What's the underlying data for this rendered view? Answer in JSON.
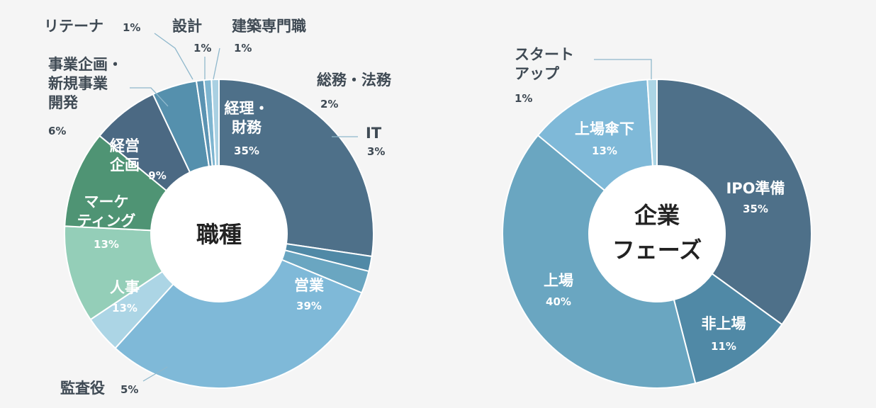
{
  "chart_data": [
    {
      "type": "donut",
      "title": "職種",
      "unit": "%",
      "slices": [
        {
          "label": "経理・財務",
          "lines": [
            "経理・",
            "財務"
          ],
          "value": 35,
          "value_label": "35%",
          "color": "#4e7089",
          "label_side": "inside"
        },
        {
          "label": "総務・法務",
          "lines": [
            "総務・法務"
          ],
          "value": 2,
          "value_label": "2%",
          "color": "#5089a6",
          "label_side": "outside"
        },
        {
          "label": "IT",
          "lines": [
            "IT"
          ],
          "value": 3,
          "value_label": "3%",
          "color": "#6aa6c1",
          "label_side": "outside"
        },
        {
          "label": "営業",
          "lines": [
            "営業"
          ],
          "value": 39,
          "value_label": "39%",
          "color": "#7fb9d8",
          "label_side": "inside"
        },
        {
          "label": "監査役",
          "lines": [
            "監査役"
          ],
          "value": 5,
          "value_label": "5%",
          "color": "#acd5e5",
          "label_side": "outside"
        },
        {
          "label": "人事",
          "lines": [
            "人事"
          ],
          "value": 13,
          "value_label": "13%",
          "color": "#94ceb8",
          "label_side": "inside"
        },
        {
          "label": "マーケティング",
          "lines": [
            "マーケ",
            "ティング"
          ],
          "value": 13,
          "value_label": "13%",
          "color": "#4f9474",
          "label_side": "inside"
        },
        {
          "label": "経営企画",
          "lines": [
            "経営",
            "企画"
          ],
          "value": 9,
          "value_label": "9%",
          "color": "#4b6983",
          "label_side": "inside"
        },
        {
          "label": "事業企画・新規事業開発",
          "lines": [
            "事業企画・",
            "新規事業",
            "開発"
          ],
          "value": 6,
          "value_label": "6%",
          "color": "#5590ad",
          "label_side": "outside"
        },
        {
          "label": "リテーナ",
          "lines": [
            "リテーナ"
          ],
          "value": 1,
          "value_label": "1%",
          "color": "#5b93b2",
          "label_side": "outside"
        },
        {
          "label": "設計",
          "lines": [
            "設計"
          ],
          "value": 1,
          "value_label": "1%",
          "color": "#7eb5d0",
          "label_side": "outside"
        },
        {
          "label": "建築専門職",
          "lines": [
            "建築専門職"
          ],
          "value": 1,
          "value_label": "1%",
          "color": "#a9d0e2",
          "label_side": "outside"
        }
      ]
    },
    {
      "type": "donut",
      "title": "企業フェーズ",
      "title_lines": [
        "企業",
        "フェーズ"
      ],
      "unit": "%",
      "slices": [
        {
          "label": "IPO準備",
          "lines": [
            "IPO準備"
          ],
          "value": 35,
          "value_label": "35%",
          "color": "#4e7089",
          "label_side": "inside"
        },
        {
          "label": "非上場",
          "lines": [
            "非上場"
          ],
          "value": 11,
          "value_label": "11%",
          "color": "#5089a6",
          "label_side": "inside"
        },
        {
          "label": "上場",
          "lines": [
            "上場"
          ],
          "value": 40,
          "value_label": "40%",
          "color": "#6aa6c1",
          "label_side": "inside"
        },
        {
          "label": "上場傘下",
          "lines": [
            "上場傘下"
          ],
          "value": 13,
          "value_label": "13%",
          "color": "#7fb9d8",
          "label_side": "inside"
        },
        {
          "label": "スタートアップ",
          "lines": [
            "スタート",
            "アップ"
          ],
          "value": 1,
          "value_label": "1%",
          "color": "#acd5e5",
          "label_side": "outside"
        }
      ]
    }
  ]
}
